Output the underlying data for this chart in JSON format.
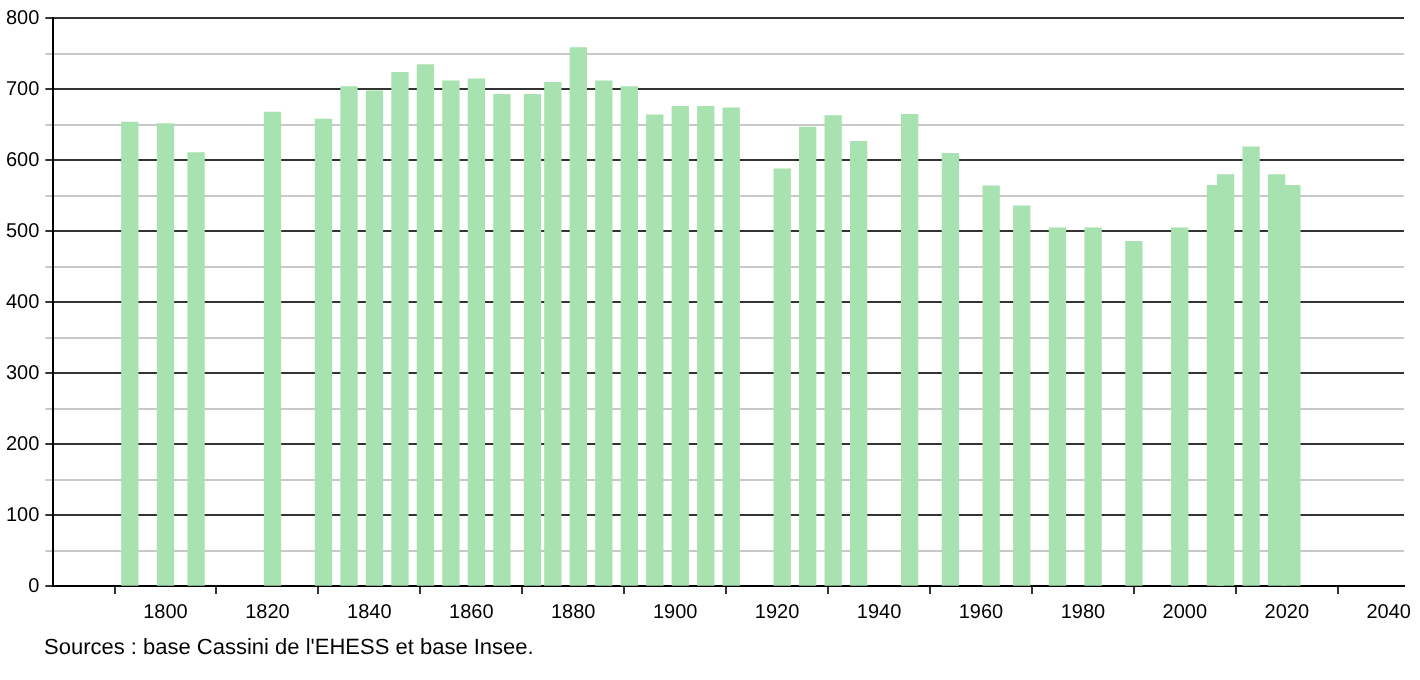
{
  "chart_data": {
    "type": "bar",
    "x": [
      1793,
      1800,
      1806,
      1821,
      1831,
      1836,
      1841,
      1846,
      1851,
      1856,
      1861,
      1866,
      1872,
      1876,
      1881,
      1886,
      1891,
      1896,
      1901,
      1906,
      1911,
      1921,
      1926,
      1931,
      1936,
      1946,
      1954,
      1962,
      1968,
      1975,
      1982,
      1990,
      1999,
      2006,
      2008,
      2013,
      2018,
      2021
    ],
    "values": [
      653,
      651,
      610,
      667,
      657,
      703,
      697,
      723,
      734,
      711,
      714,
      692,
      692,
      709,
      758,
      711,
      703,
      663,
      675,
      675,
      673,
      587,
      646,
      662,
      626,
      664,
      609,
      563,
      535,
      504,
      504,
      485,
      504,
      564,
      579,
      618,
      579,
      564
    ],
    "color": "#a8e2b0",
    "xlim": [
      1778,
      2043
    ],
    "xticks": [
      1800,
      1820,
      1840,
      1860,
      1880,
      1900,
      1920,
      1940,
      1960,
      1980,
      2000,
      2020,
      2040
    ],
    "ylim": [
      0,
      800
    ],
    "yticks": [
      0,
      {
        "value": 50,
        "label": null
      },
      100,
      {
        "value": 150,
        "label": null
      },
      200,
      {
        "value": 250,
        "label": null
      },
      300,
      {
        "value": 350,
        "label": null
      },
      400,
      {
        "value": 450,
        "label": null
      },
      500,
      {
        "value": 550,
        "label": null
      },
      600,
      {
        "value": 650,
        "label": null
      },
      700,
      {
        "value": 750,
        "label": null
      },
      800
    ],
    "grid": "y",
    "annotations": [
      "Sources : base Cassini de l'EHESS et base Insee."
    ]
  }
}
